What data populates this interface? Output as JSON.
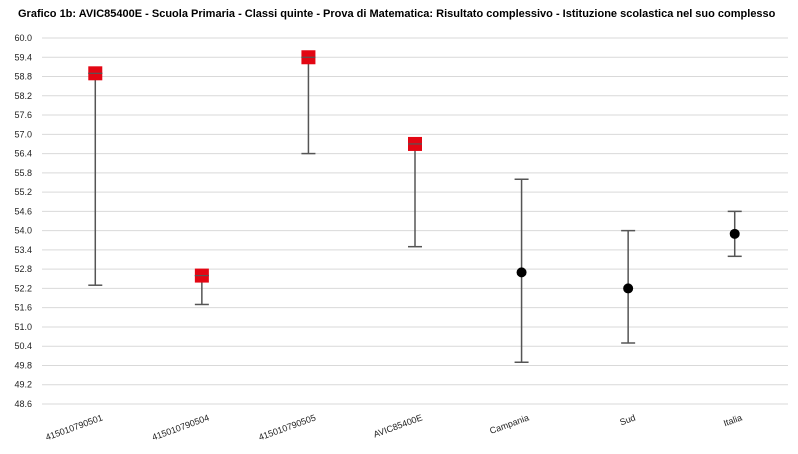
{
  "chart_data": {
    "type": "scatter",
    "title": "Grafico 1b: AVIC85400E - Scuola Primaria - Classi quinte - Prova di Matematica: Risultato complessivo - Istituzione scolastica nel suo complesso",
    "xlabel": "",
    "ylabel": "",
    "ylim": [
      48.6,
      60.0
    ],
    "yticks": [
      "60.0",
      "59.4",
      "58.8",
      "58.2",
      "57.6",
      "57.0",
      "56.4",
      "55.8",
      "55.2",
      "54.6",
      "54.0",
      "53.4",
      "52.8",
      "52.2",
      "51.6",
      "51.0",
      "50.4",
      "49.8",
      "49.2",
      "48.6"
    ],
    "grid": true,
    "categories": [
      "415010790501",
      "415010790504",
      "415010790505",
      "AVIC85400E",
      "Campania",
      "Sud",
      "Italia"
    ],
    "values": [
      58.9,
      52.6,
      59.4,
      56.7,
      52.7,
      52.2,
      53.9
    ],
    "error_low": [
      52.3,
      51.7,
      56.4,
      53.5,
      49.9,
      50.5,
      53.2
    ],
    "error_high": [
      58.9,
      52.6,
      59.4,
      56.7,
      55.6,
      54.0,
      54.6
    ],
    "markers": [
      "square",
      "square",
      "square",
      "square",
      "circle",
      "circle",
      "circle"
    ],
    "colors": {
      "square": "#e30613",
      "circle": "#000000",
      "whisker": "#555555",
      "grid": "#d9d9d9"
    }
  }
}
